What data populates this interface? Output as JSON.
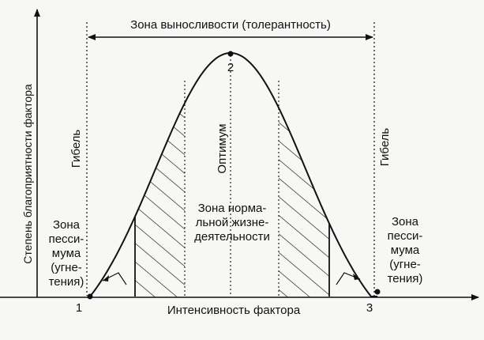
{
  "diagram": {
    "tolerance_zone": "Зона выносливости (толерантность)",
    "y_axis_label": "Степень благоприятности фактора",
    "x_axis_label": "Интенсивность фактора",
    "death_left": "Гибель",
    "death_right": "Гибель",
    "optimum": "Оптимум",
    "point_1": "1",
    "point_2": "2",
    "point_3": "3",
    "normal_zone": [
      "Зона норма-",
      "льной жизне-",
      "деятельности"
    ],
    "pessimum_left": [
      "Зона",
      "песси-",
      "мума",
      "(угне-",
      "тения)"
    ],
    "pessimum_right": [
      "Зона",
      "песси-",
      "мума",
      "(угне-",
      "тения)"
    ]
  }
}
